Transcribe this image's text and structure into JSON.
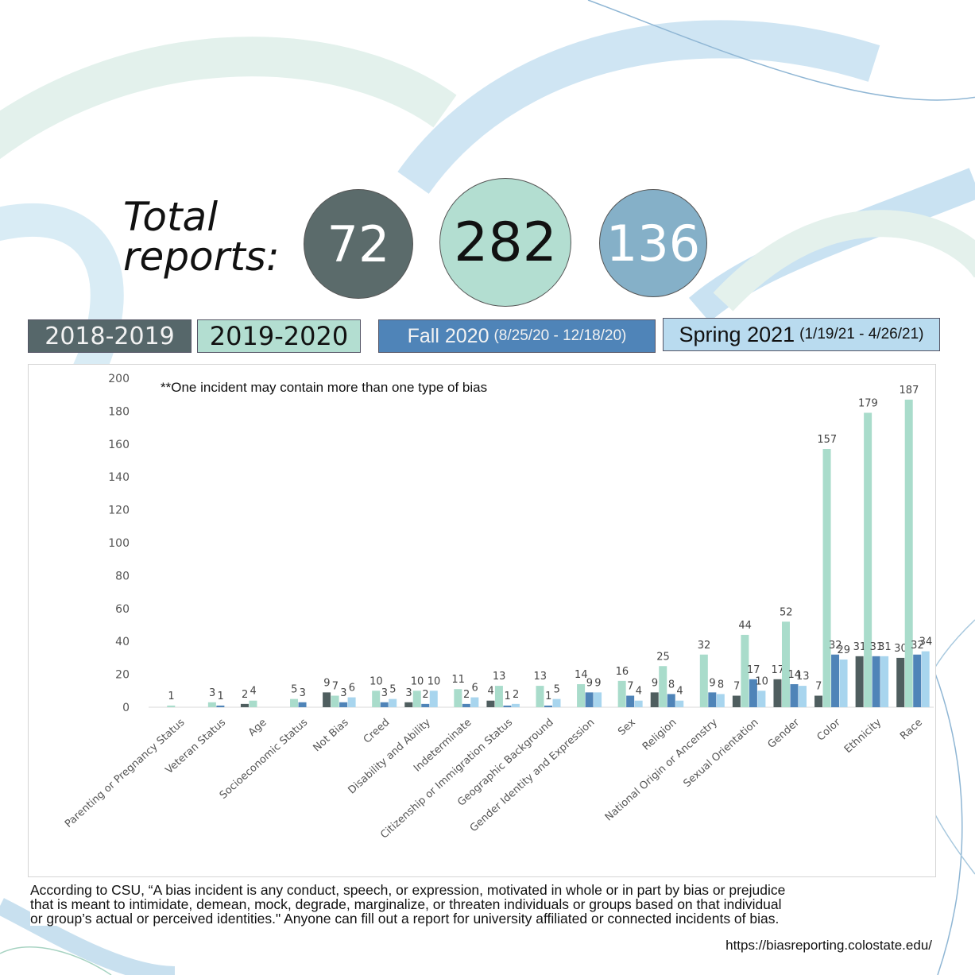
{
  "totals": {
    "label_line1": "Total",
    "label_line2": "reports:",
    "values": [
      "72",
      "282",
      "136"
    ]
  },
  "legend": {
    "items": [
      {
        "main": "2018-2019",
        "sub": ""
      },
      {
        "main": "2019-2020",
        "sub": ""
      },
      {
        "main": "Fall 2020",
        "sub": "(8/25/20 - 12/18/20)"
      },
      {
        "main": "Spring 2021",
        "sub": "(1/19/21 - 4/26/21)"
      }
    ]
  },
  "colors": {
    "s2018": "#4f5e5f",
    "s2019": "#a9dccb",
    "sFall": "#4f84b8",
    "sSpring": "#a8d5ee"
  },
  "caption": {
    "line1": "According to CSU, “A bias incident is any conduct, speech, or expression, motivated in whole or in part by bias or prejudice",
    "line2": "that is meant to intimidate, demean, mock, degrade, marginalize, or threaten individuals or groups based on that individual",
    "line3": "or group’s actual or perceived identities.\" Anyone can fill out a report for university affiliated or connected incidents of bias.",
    "url": "https://biasreporting.colostate.edu/"
  },
  "chart_data": {
    "type": "bar",
    "annotation": "**One incident may contain more than one type of bias",
    "ylim": [
      0,
      200
    ],
    "yticks": [
      0,
      20,
      40,
      60,
      80,
      100,
      120,
      140,
      160,
      180,
      200
    ],
    "grid": false,
    "categories": [
      "Parenting or Pregnancy Status",
      "Veteran Status",
      "Age",
      "Socioeconomic Status",
      "Not Bias",
      "Creed",
      "Disability and Ability",
      "Indeterminate",
      "Citizenship or Immigration  Status",
      "Geographic Background",
      "Gender Identity and Expression",
      "Sex",
      "Religion",
      "National Origin or Ancenstry",
      "Sexual Orientation",
      "Gender",
      "Color",
      "Ethnicity",
      "Race"
    ],
    "series": [
      {
        "name": "2018-2019",
        "values": [
          null,
          null,
          2,
          null,
          9,
          null,
          3,
          null,
          4,
          null,
          null,
          null,
          9,
          null,
          7,
          17,
          7,
          31,
          30
        ]
      },
      {
        "name": "2019-2020",
        "values": [
          1,
          3,
          4,
          5,
          7,
          10,
          10,
          11,
          13,
          13,
          14,
          16,
          25,
          32,
          44,
          52,
          157,
          179,
          187
        ]
      },
      {
        "name": "Fall 2020",
        "values": [
          null,
          1,
          null,
          3,
          3,
          3,
          2,
          2,
          1,
          1,
          9,
          7,
          8,
          9,
          17,
          14,
          32,
          31,
          32
        ]
      },
      {
        "name": "Spring 2021",
        "values": [
          null,
          null,
          null,
          null,
          6,
          5,
          10,
          6,
          2,
          5,
          9,
          4,
          4,
          8,
          10,
          13,
          29,
          31,
          34
        ]
      }
    ]
  }
}
